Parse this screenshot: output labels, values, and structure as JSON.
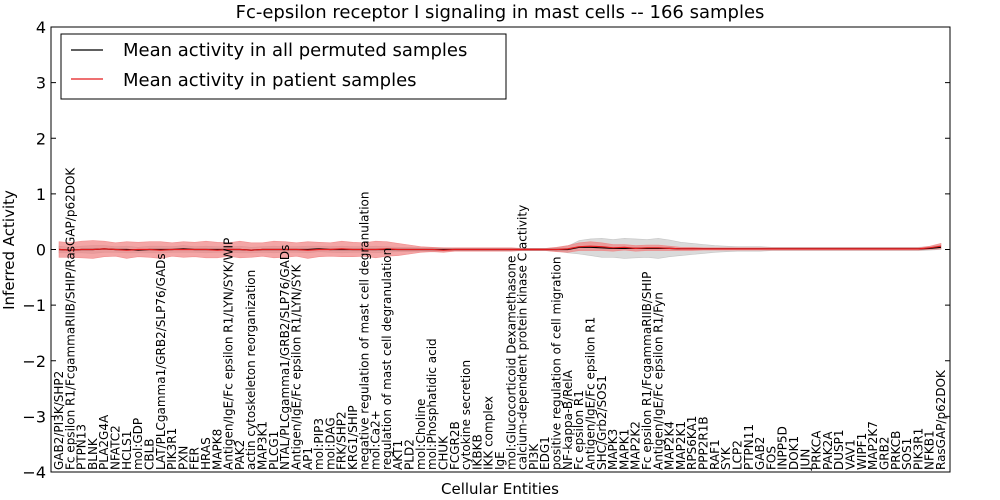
{
  "chart_data": {
    "type": "line",
    "title": "Fc-epsilon receptor I signaling in mast cells -- 166 samples",
    "xlabel": "Cellular Entities",
    "ylabel": "Inferred Activity",
    "ylim": [
      -4,
      4
    ],
    "yticks": [
      4,
      3,
      2,
      1,
      0,
      -1,
      -2,
      -3,
      -4
    ],
    "ytick_labels": [
      "4",
      "3",
      "2",
      "1",
      "0",
      "−1",
      "−2",
      "−3",
      "−4"
    ],
    "legend": {
      "placement": "top-left",
      "entries": [
        "Mean activity in all permuted samples",
        "Mean activity in patient samples"
      ]
    },
    "colors": {
      "permuted_line": "#000000",
      "patient_line": "#e41a1c",
      "patient_band": "#f08080",
      "permuted_band": "#bbbbbb"
    },
    "categories": [
      "GAB2/PI3K/SHP2",
      "Fc epsilon R1/FcgammaRIIB/SHIP/RasGAP/p62DOK",
      "PTPN13",
      "BLNK",
      "PLA2G4A",
      "NFATC2",
      "HCLS1",
      "mol:GDP",
      "CBLB",
      "LAT/PLCgamma1/GRB2/SLP76/GADs",
      "PIK3R1",
      "PXN",
      "FER",
      "HRAS",
      "MAPK8",
      "Antigen/IgE/Fc epsilon R1/LYN/SYK/WIP",
      "PAK2",
      "actin cytoskeleton reorganization",
      "MAP3K1",
      "PLCG1",
      "NTAL/PLCgamma1/GRB2/SLP76/GADs",
      "Antigen/IgE/Fc epsilon R1/LYN/SYK",
      "AP1",
      "mol:PIP3",
      "mol:DAG",
      "FRK/SHP2",
      "KRG1/SHIP",
      "negative regulation of mast cell degranulation",
      "mol:Ca2+",
      "regulation of mast cell degranulation",
      "AKT1",
      "PLD2",
      "mol:Choline",
      "mol:Phosphatidic acid",
      "CHUK",
      "FCGR2B",
      "cytokine secretion",
      "IKBKB",
      "IKK complex",
      "IgE",
      "mol:Glucocorticoid Dexamethasone",
      "calcium-dependent protein kinase C activity",
      "PI3K",
      "EDG1",
      "positive regulation of cell migration",
      "NF-kappa-B/RelA",
      "Fc epsilon R1",
      "Antigen/IgE/Fc epsilon R1",
      "SHC/Grb2/SOS1",
      "MAPK3",
      "MAPK1",
      "MAP2K2",
      "Fc epsilon R1/FcgammaRIIB/SHIP",
      "Antigen/IgE/Fc epsilon R1/Fyn",
      "MAP2K4",
      "MAP2K1",
      "RPS6KA1",
      "PPP2R1B",
      "RAF1",
      "SYK",
      "LCP2",
      "PTPN11",
      "GAB2",
      "FOS",
      "INPP5D",
      "DOK1",
      "JUN",
      "PRKCA",
      "PAK2A",
      "DUSP1",
      "VAV1",
      "WIPF1",
      "MAP2K7",
      "GRB2",
      "PRKCB",
      "SOS1",
      "PIK3R1",
      "NFKB1",
      "RasGAP/p62DOK"
    ],
    "permuted_mean": [
      0.0,
      -0.01,
      0.0,
      0.0,
      0.01,
      0.0,
      0.0,
      -0.01,
      0.0,
      0.0,
      0.0,
      0.01,
      0.0,
      0.0,
      0.0,
      0.0,
      0.0,
      -0.01,
      0.0,
      0.0,
      0.0,
      0.0,
      0.0,
      0.01,
      0.0,
      0.0,
      0.0,
      0.0,
      0.0,
      0.0,
      0.0,
      0.0,
      0.0,
      0.0,
      0.0,
      0.0,
      0.0,
      0.0,
      0.0,
      0.0,
      0.0,
      0.0,
      0.0,
      0.0,
      0.0,
      0.0,
      0.04,
      0.04,
      0.03,
      0.02,
      0.02,
      0.02,
      0.02,
      0.02,
      0.02,
      0.01,
      0.01,
      0.01,
      0.01,
      0.01,
      0.01,
      0.01,
      0.01,
      0.01,
      0.01,
      0.01,
      0.01,
      0.01,
      0.01,
      0.01,
      0.01,
      0.01,
      0.01,
      0.01,
      0.01,
      0.01,
      0.01,
      0.02,
      0.04
    ],
    "permuted_spread": [
      0.06,
      0.05,
      0.06,
      0.07,
      0.06,
      0.05,
      0.06,
      0.05,
      0.06,
      0.06,
      0.05,
      0.06,
      0.05,
      0.06,
      0.05,
      0.05,
      0.06,
      0.05,
      0.05,
      0.06,
      0.05,
      0.05,
      0.06,
      0.05,
      0.05,
      0.06,
      0.05,
      0.05,
      0.06,
      0.05,
      0.04,
      0.04,
      0.03,
      0.03,
      0.03,
      0.02,
      0.02,
      0.02,
      0.02,
      0.02,
      0.02,
      0.02,
      0.02,
      0.02,
      0.03,
      0.06,
      0.12,
      0.15,
      0.17,
      0.16,
      0.18,
      0.17,
      0.16,
      0.18,
      0.15,
      0.12,
      0.1,
      0.08,
      0.06,
      0.05,
      0.04,
      0.04,
      0.04,
      0.03,
      0.03,
      0.03,
      0.03,
      0.03,
      0.03,
      0.03,
      0.03,
      0.03,
      0.03,
      0.03,
      0.03,
      0.03,
      0.03,
      0.03,
      0.04
    ],
    "patient_mean": [
      0.0,
      -0.01,
      0.0,
      0.0,
      0.01,
      0.0,
      -0.01,
      0.0,
      0.0,
      -0.01,
      0.0,
      0.0,
      0.0,
      0.0,
      -0.01,
      0.0,
      0.0,
      -0.01,
      0.0,
      0.0,
      0.0,
      0.0,
      -0.01,
      0.0,
      0.0,
      0.01,
      0.0,
      0.0,
      0.0,
      0.01,
      0.0,
      0.0,
      0.0,
      0.0,
      -0.01,
      0.0,
      0.0,
      0.0,
      0.0,
      0.0,
      0.0,
      0.0,
      0.0,
      0.0,
      0.0,
      0.01,
      0.05,
      0.06,
      0.05,
      0.03,
      0.04,
      0.02,
      0.03,
      0.03,
      0.02,
      0.01,
      0.01,
      0.01,
      0.01,
      0.01,
      0.01,
      0.01,
      0.01,
      0.01,
      0.01,
      0.01,
      0.01,
      0.01,
      0.01,
      0.01,
      0.01,
      0.01,
      0.01,
      0.01,
      0.01,
      0.01,
      0.01,
      0.03,
      0.06
    ],
    "patient_spread": [
      0.14,
      0.13,
      0.15,
      0.16,
      0.14,
      0.12,
      0.15,
      0.13,
      0.14,
      0.15,
      0.12,
      0.14,
      0.13,
      0.15,
      0.14,
      0.12,
      0.15,
      0.13,
      0.12,
      0.15,
      0.14,
      0.12,
      0.15,
      0.13,
      0.12,
      0.14,
      0.13,
      0.12,
      0.15,
      0.13,
      0.11,
      0.08,
      0.05,
      0.04,
      0.04,
      0.03,
      0.03,
      0.03,
      0.03,
      0.03,
      0.03,
      0.02,
      0.02,
      0.02,
      0.04,
      0.06,
      0.07,
      0.08,
      0.07,
      0.06,
      0.05,
      0.05,
      0.05,
      0.05,
      0.04,
      0.03,
      0.03,
      0.02,
      0.02,
      0.02,
      0.02,
      0.02,
      0.02,
      0.02,
      0.02,
      0.02,
      0.02,
      0.02,
      0.02,
      0.02,
      0.02,
      0.02,
      0.02,
      0.02,
      0.02,
      0.02,
      0.02,
      0.03,
      0.05
    ]
  }
}
